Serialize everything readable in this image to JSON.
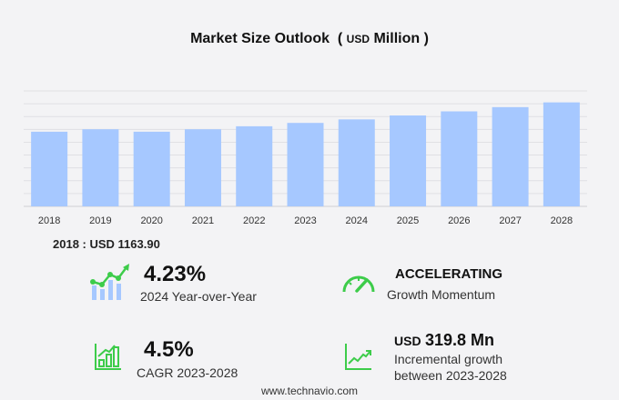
{
  "title": "Market Size Outlook",
  "unit_prefix": "USD",
  "unit": "Million",
  "chart_data": {
    "type": "bar",
    "title": "Market Size Outlook (USD Million)",
    "categories": [
      "2018",
      "2019",
      "2020",
      "2021",
      "2022",
      "2023",
      "2024",
      "2025",
      "2026",
      "2027",
      "2028"
    ],
    "values": [
      1163.9,
      1202,
      1164,
      1202,
      1249,
      1301,
      1356,
      1417,
      1481,
      1547,
      1621
    ],
    "ylim": [
      0,
      1800
    ],
    "grid": true,
    "bar_color": "#a6c8ff"
  },
  "base_label": "2018 : USD  1163.90",
  "kpis": {
    "yoy": {
      "value": "4.23%",
      "label": "2024 Year-over-Year"
    },
    "momentum": {
      "value": "ACCELERATING",
      "label": "Growth Momentum"
    },
    "cagr": {
      "value": "4.5%",
      "label": "CAGR 2023-2028"
    },
    "incr": {
      "prefix": "USD",
      "value": "319.8 Mn",
      "label1": "Incremental growth",
      "label2": "between 2023-2028"
    }
  },
  "accent": "#3dcc4a",
  "footer": "www.technavio.com"
}
